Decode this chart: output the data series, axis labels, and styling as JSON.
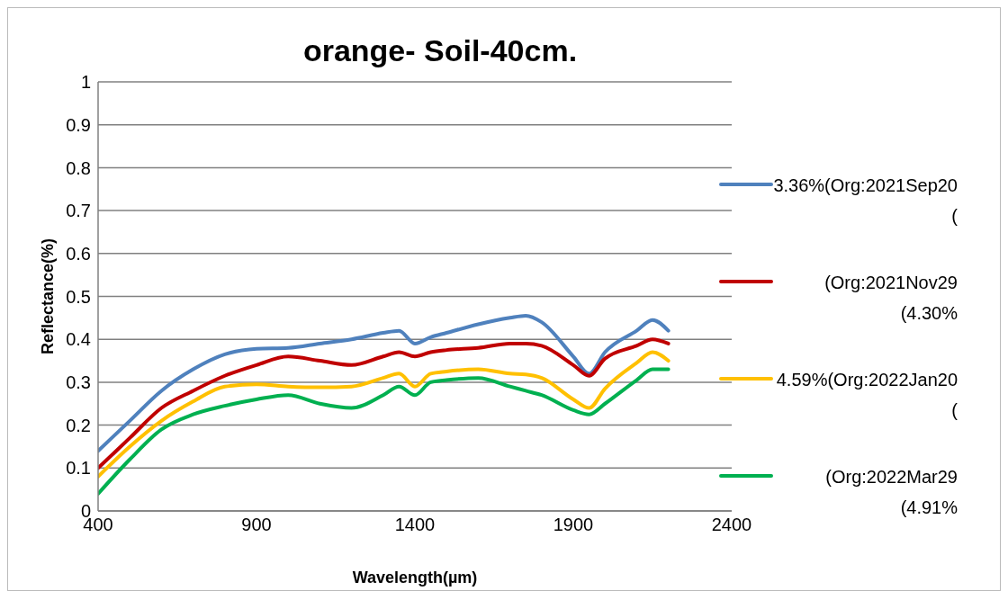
{
  "chart_data": {
    "type": "line",
    "title": "orange- Soil-40cm.",
    "xlabel": "Wavelength(µm)",
    "ylabel": "Reflectance(%)",
    "x": [
      400,
      500,
      600,
      700,
      800,
      900,
      1000,
      1100,
      1200,
      1300,
      1350,
      1400,
      1450,
      1500,
      1600,
      1700,
      1750,
      1800,
      1900,
      1950,
      2000,
      2100,
      2150,
      2200
    ],
    "series": [
      {
        "name": "3.36%(Org:2021Sep20 (",
        "color": "#4f81bd",
        "values": [
          0.14,
          0.21,
          0.28,
          0.33,
          0.365,
          0.378,
          0.38,
          0.39,
          0.4,
          0.415,
          0.42,
          0.39,
          0.405,
          0.415,
          0.435,
          0.45,
          0.455,
          0.44,
          0.36,
          0.32,
          0.37,
          0.42,
          0.445,
          0.42
        ]
      },
      {
        "name": "(Org:2021Nov29 (4.30%",
        "color": "#c00000",
        "values": [
          0.1,
          0.17,
          0.24,
          0.28,
          0.315,
          0.34,
          0.36,
          0.35,
          0.34,
          0.36,
          0.37,
          0.36,
          0.37,
          0.375,
          0.38,
          0.39,
          0.39,
          0.385,
          0.34,
          0.315,
          0.355,
          0.385,
          0.4,
          0.39
        ]
      },
      {
        "name": "4.59%(Org:2022Jan20 (",
        "color": "#ffc000",
        "values": [
          0.08,
          0.15,
          0.21,
          0.255,
          0.29,
          0.295,
          0.29,
          0.288,
          0.29,
          0.31,
          0.32,
          0.29,
          0.32,
          0.325,
          0.33,
          0.32,
          0.318,
          0.31,
          0.26,
          0.24,
          0.285,
          0.345,
          0.37,
          0.35
        ]
      },
      {
        "name": "(Org:2022Mar29 (4.91%",
        "color": "#00b050",
        "values": [
          0.04,
          0.12,
          0.19,
          0.225,
          0.245,
          0.26,
          0.27,
          0.25,
          0.24,
          0.27,
          0.29,
          0.27,
          0.3,
          0.305,
          0.31,
          0.29,
          0.28,
          0.27,
          0.235,
          0.225,
          0.25,
          0.305,
          0.33,
          0.33
        ]
      }
    ],
    "xlim": [
      400,
      2400
    ],
    "xticks": [
      400,
      900,
      1400,
      1900,
      2400
    ],
    "ylim": [
      0,
      1
    ],
    "yticks": [
      0,
      0.1,
      0.2,
      0.3,
      0.4,
      0.5,
      0.6,
      0.7,
      0.8,
      0.9,
      1
    ],
    "grid": "y",
    "legend": "right",
    "marker": "none",
    "line_style": "solid"
  }
}
